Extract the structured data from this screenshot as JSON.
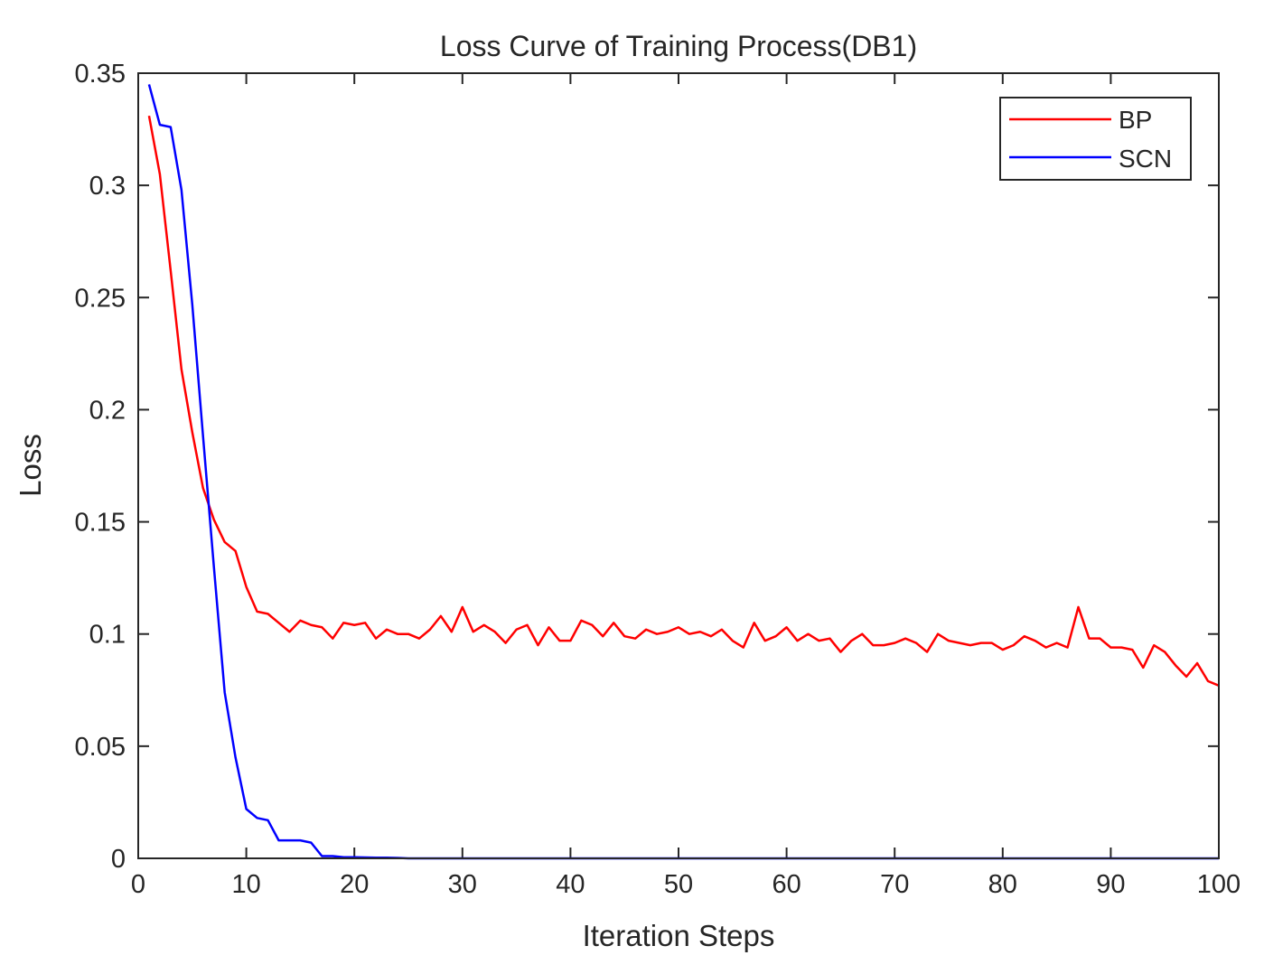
{
  "chart_data": {
    "type": "line",
    "title": "Loss Curve of Training Process(DB1)",
    "xlabel": "Iteration Steps",
    "ylabel": "Loss",
    "xlim": [
      0,
      100
    ],
    "ylim": [
      0,
      0.35
    ],
    "xticks": [
      0,
      10,
      20,
      30,
      40,
      50,
      60,
      70,
      80,
      90,
      100
    ],
    "xtick_labels": [
      "0",
      "10",
      "20",
      "30",
      "40",
      "50",
      "60",
      "70",
      "80",
      "90",
      "100"
    ],
    "yticks": [
      0,
      0.05,
      0.1,
      0.15,
      0.2,
      0.25,
      0.3,
      0.35
    ],
    "ytick_labels": [
      "0",
      "0.05",
      "0.1",
      "0.15",
      "0.2",
      "0.25",
      "0.3",
      "0.35"
    ],
    "grid": false,
    "legend_position": "top-right",
    "x": [
      1,
      2,
      3,
      4,
      5,
      6,
      7,
      8,
      9,
      10,
      11,
      12,
      13,
      14,
      15,
      16,
      17,
      18,
      19,
      20,
      21,
      22,
      23,
      24,
      25,
      26,
      27,
      28,
      29,
      30,
      31,
      32,
      33,
      34,
      35,
      36,
      37,
      38,
      39,
      40,
      41,
      42,
      43,
      44,
      45,
      46,
      47,
      48,
      49,
      50,
      51,
      52,
      53,
      54,
      55,
      56,
      57,
      58,
      59,
      60,
      61,
      62,
      63,
      64,
      65,
      66,
      67,
      68,
      69,
      70,
      71,
      72,
      73,
      74,
      75,
      76,
      77,
      78,
      79,
      80,
      81,
      82,
      83,
      84,
      85,
      86,
      87,
      88,
      89,
      90,
      91,
      92,
      93,
      94,
      95,
      96,
      97,
      98,
      99,
      100
    ],
    "series": [
      {
        "name": "BP",
        "color": "#ff0000",
        "values": [
          0.331,
          0.305,
          0.262,
          0.218,
          0.19,
          0.165,
          0.151,
          0.141,
          0.137,
          0.121,
          0.11,
          0.109,
          0.105,
          0.101,
          0.106,
          0.104,
          0.103,
          0.098,
          0.105,
          0.104,
          0.105,
          0.098,
          0.102,
          0.1,
          0.1,
          0.098,
          0.102,
          0.108,
          0.101,
          0.112,
          0.101,
          0.104,
          0.101,
          0.096,
          0.102,
          0.104,
          0.095,
          0.103,
          0.097,
          0.097,
          0.106,
          0.104,
          0.099,
          0.105,
          0.099,
          0.098,
          0.102,
          0.1,
          0.101,
          0.103,
          0.1,
          0.101,
          0.099,
          0.102,
          0.097,
          0.094,
          0.105,
          0.097,
          0.099,
          0.103,
          0.097,
          0.1,
          0.097,
          0.098,
          0.092,
          0.097,
          0.1,
          0.095,
          0.095,
          0.096,
          0.098,
          0.096,
          0.092,
          0.1,
          0.097,
          0.096,
          0.095,
          0.096,
          0.096,
          0.093,
          0.095,
          0.099,
          0.097,
          0.094,
          0.096,
          0.094,
          0.112,
          0.098,
          0.098,
          0.094,
          0.094,
          0.093,
          0.085,
          0.095,
          0.092,
          0.086,
          0.081,
          0.087,
          0.079,
          0.077
        ]
      },
      {
        "name": "SCN",
        "color": "#0000ff",
        "values": [
          0.345,
          0.327,
          0.326,
          0.298,
          0.247,
          0.188,
          0.13,
          0.074,
          0.045,
          0.022,
          0.018,
          0.017,
          0.008,
          0.008,
          0.008,
          0.007,
          0.001,
          0.001,
          0.0005,
          0.0005,
          0.0004,
          0.0003,
          0.0003,
          0.0002,
          0,
          0,
          0,
          0,
          0,
          0,
          0,
          0,
          0,
          0,
          0,
          0,
          0,
          0,
          0,
          0,
          0,
          0,
          0,
          0,
          0,
          0,
          0,
          0,
          0,
          0,
          0,
          0,
          0,
          0,
          0,
          0,
          0,
          0,
          0,
          0,
          0,
          0,
          0,
          0,
          0,
          0,
          0,
          0,
          0,
          0,
          0,
          0,
          0,
          0,
          0,
          0,
          0,
          0,
          0,
          0,
          0,
          0,
          0,
          0,
          0,
          0,
          0,
          0,
          0,
          0,
          0,
          0,
          0,
          0,
          0,
          0,
          0,
          0,
          0,
          0
        ]
      }
    ]
  }
}
